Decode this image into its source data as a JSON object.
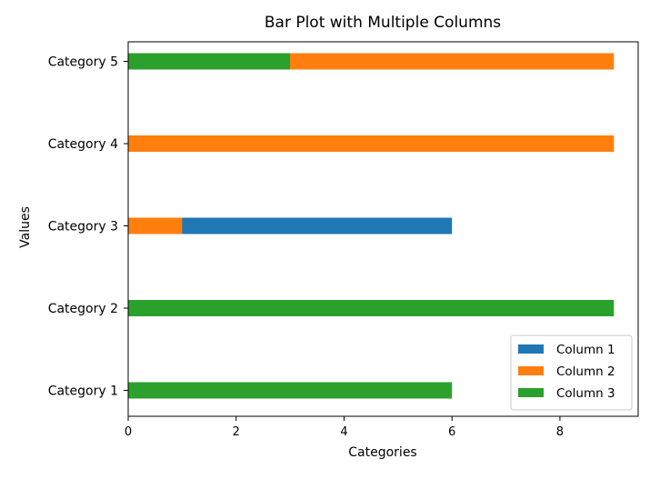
{
  "chart_data": {
    "type": "bar",
    "orientation": "horizontal",
    "title": "Bar Plot with Multiple Columns",
    "xlabel": "Categories",
    "ylabel": "Values",
    "categories": [
      "Category 1",
      "Category 2",
      "Category 3",
      "Category 4",
      "Category 5"
    ],
    "xlim": [
      0,
      9.45
    ],
    "xticks": [
      0,
      2,
      4,
      6,
      8
    ],
    "series": [
      {
        "name": "Column 1",
        "color": "#1f77b4",
        "values": [
          0,
          0,
          6,
          0,
          0
        ]
      },
      {
        "name": "Column 2",
        "color": "#ff7f0e",
        "values": [
          0,
          0,
          1,
          9,
          9
        ]
      },
      {
        "name": "Column 3",
        "color": "#2ca02c",
        "values": [
          6,
          9,
          0,
          0,
          3
        ]
      }
    ],
    "legend": {
      "placement": "lower-right"
    },
    "grid": false
  }
}
